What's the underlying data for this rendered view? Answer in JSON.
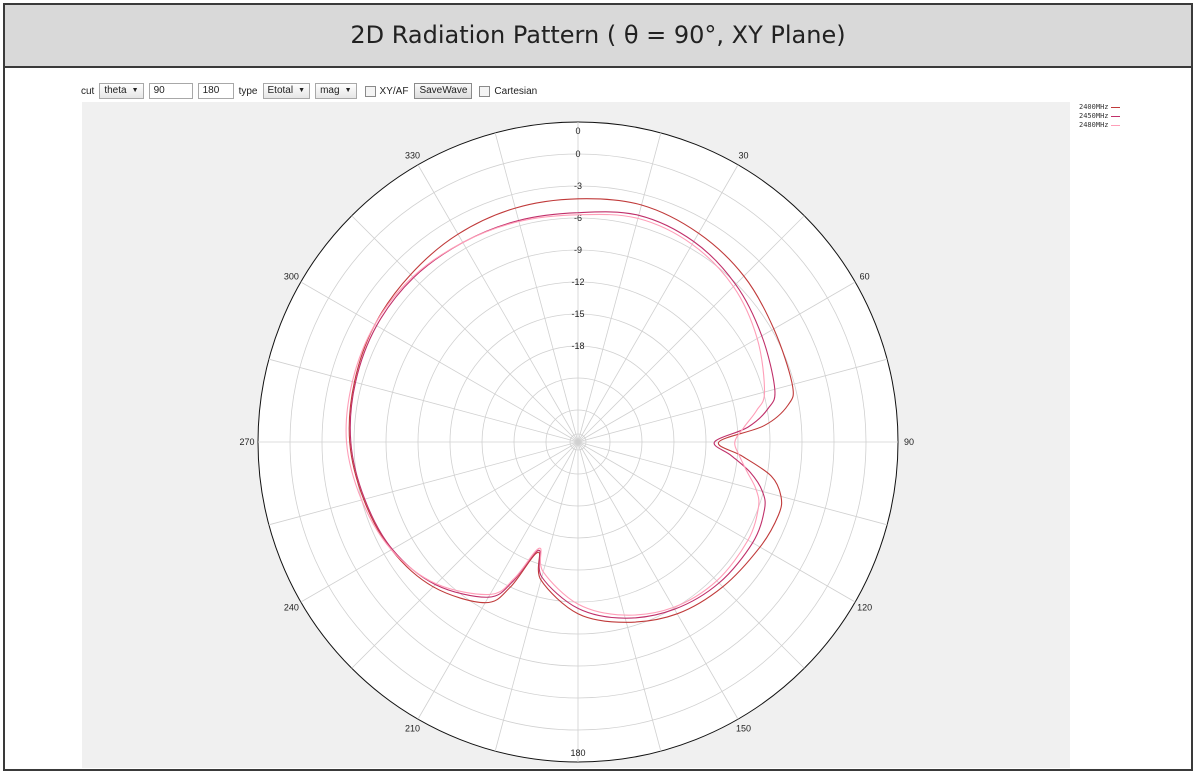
{
  "title": "2D Radiation Pattern ( θ = 90°, XY Plane)",
  "toolbar": {
    "cut_label": "cut",
    "cut_value": "theta",
    "start_value": "90",
    "stop_value": "180",
    "type_label": "type",
    "type_value": "Etotal",
    "mode_value": "mag",
    "xyaf_label": "XY/AF",
    "savewave_label": "SaveWave",
    "cartesian_label": "Cartesian",
    "dropdown_icon": "chevron-down-icon",
    "checkbox_icon": "unchecked-box-icon"
  },
  "chart_data": {
    "type": "polar-line",
    "title": "",
    "angle_ticks": [
      "0",
      "30",
      "60",
      "90",
      "120",
      "150",
      "180",
      "210",
      "240",
      "270",
      "300",
      "330"
    ],
    "radial_ticks": [
      "0",
      "-3",
      "-6",
      "-9",
      "-12",
      "-15",
      "-18"
    ],
    "rlim_db": [
      -27,
      3
    ],
    "grid": true,
    "legend_position": "top-right",
    "angles_deg": [
      0,
      15,
      30,
      45,
      60,
      75,
      80,
      85,
      90,
      95,
      100,
      105,
      110,
      120,
      135,
      150,
      165,
      180,
      195,
      200,
      205,
      210,
      225,
      240,
      255,
      270,
      285,
      300,
      315,
      330,
      345
    ],
    "series": [
      {
        "name": "2400MHz",
        "color": "#c03a3a",
        "values": [
          -4.2,
          -4.0,
          -4.4,
          -5.0,
          -5.8,
          -6.2,
          -7.0,
          -9.5,
          -13.8,
          -11.5,
          -8.6,
          -7.3,
          -7.0,
          -7.3,
          -7.8,
          -8.4,
          -9.5,
          -10.9,
          -13.6,
          -16.0,
          -12.0,
          -9.6,
          -7.8,
          -6.8,
          -6.2,
          -5.6,
          -5.3,
          -5.0,
          -4.8,
          -4.5,
          -4.3
        ]
      },
      {
        "name": "2450MHz",
        "color": "#c0306a",
        "values": [
          -5.5,
          -5.0,
          -5.3,
          -6.1,
          -7.1,
          -7.9,
          -8.9,
          -11.0,
          -14.2,
          -12.6,
          -10.6,
          -9.1,
          -8.4,
          -8.1,
          -8.3,
          -8.9,
          -9.9,
          -11.4,
          -13.9,
          -16.2,
          -12.6,
          -10.2,
          -8.1,
          -6.9,
          -6.3,
          -5.7,
          -5.4,
          -5.2,
          -5.2,
          -5.4,
          -5.5
        ]
      },
      {
        "name": "2480MHz",
        "color": "#ff9eb8",
        "values": [
          -5.7,
          -5.3,
          -5.6,
          -6.4,
          -7.6,
          -8.9,
          -10.0,
          -11.4,
          -12.3,
          -11.8,
          -10.9,
          -9.7,
          -9.0,
          -8.6,
          -8.6,
          -9.1,
          -10.2,
          -11.8,
          -14.4,
          -16.4,
          -12.9,
          -10.5,
          -8.2,
          -6.8,
          -6.0,
          -5.3,
          -5.1,
          -5.0,
          -5.1,
          -5.4,
          -5.6
        ]
      }
    ]
  }
}
